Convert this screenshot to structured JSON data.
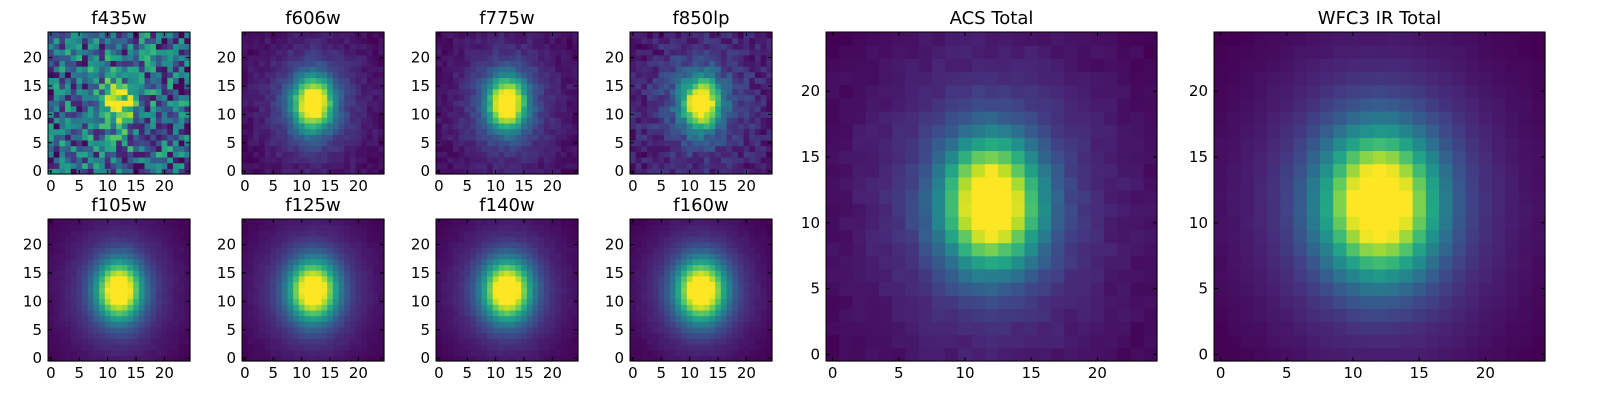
{
  "figure": {
    "description_free": true
  },
  "chart_data": [
    {
      "type": "heatmap",
      "title": "f435w",
      "xlim": [
        0,
        24
      ],
      "ylim": [
        0,
        24
      ],
      "x_ticks": [
        0,
        5,
        10,
        15,
        20
      ],
      "y_ticks": [
        0,
        5,
        10,
        15,
        20
      ],
      "grid_size": 25,
      "source": {
        "cx": 12,
        "cy": 12,
        "sigma_x": 1.6,
        "sigma_y": 2.2
      },
      "noise": 0.55,
      "background": 0.35,
      "colormap": "viridis"
    },
    {
      "type": "heatmap",
      "title": "f606w",
      "xlim": [
        0,
        24
      ],
      "ylim": [
        0,
        24
      ],
      "x_ticks": [
        0,
        5,
        10,
        15,
        20
      ],
      "y_ticks": [
        0,
        5,
        10,
        15,
        20
      ],
      "grid_size": 25,
      "source": {
        "cx": 12,
        "cy": 12,
        "sigma_x": 2.4,
        "sigma_y": 3.2
      },
      "noise": 0.04,
      "background": 0.05,
      "colormap": "viridis"
    },
    {
      "type": "heatmap",
      "title": "f775w",
      "xlim": [
        0,
        24
      ],
      "ylim": [
        0,
        24
      ],
      "x_ticks": [
        0,
        5,
        10,
        15,
        20
      ],
      "y_ticks": [
        0,
        5,
        10,
        15,
        20
      ],
      "grid_size": 25,
      "source": {
        "cx": 12,
        "cy": 12,
        "sigma_x": 2.3,
        "sigma_y": 3.1
      },
      "noise": 0.04,
      "background": 0.05,
      "colormap": "viridis"
    },
    {
      "type": "heatmap",
      "title": "f850lp",
      "xlim": [
        0,
        24
      ],
      "ylim": [
        0,
        24
      ],
      "x_ticks": [
        0,
        5,
        10,
        15,
        20
      ],
      "y_ticks": [
        0,
        5,
        10,
        15,
        20
      ],
      "grid_size": 25,
      "source": {
        "cx": 12,
        "cy": 12,
        "sigma_x": 2.3,
        "sigma_y": 3.0
      },
      "noise": 0.09,
      "background": 0.08,
      "colormap": "viridis"
    },
    {
      "type": "heatmap",
      "title": "f105w",
      "xlim": [
        0,
        24
      ],
      "ylim": [
        0,
        24
      ],
      "x_ticks": [
        0,
        5,
        10,
        15,
        20
      ],
      "y_ticks": [
        0,
        5,
        10,
        15,
        20
      ],
      "grid_size": 25,
      "source": {
        "cx": 12,
        "cy": 12,
        "sigma_x": 2.7,
        "sigma_y": 3.5
      },
      "noise": 0.01,
      "background": 0.04,
      "colormap": "viridis"
    },
    {
      "type": "heatmap",
      "title": "f125w",
      "xlim": [
        0,
        24
      ],
      "ylim": [
        0,
        24
      ],
      "x_ticks": [
        0,
        5,
        10,
        15,
        20
      ],
      "y_ticks": [
        0,
        5,
        10,
        15,
        20
      ],
      "grid_size": 25,
      "source": {
        "cx": 12,
        "cy": 12,
        "sigma_x": 2.9,
        "sigma_y": 3.6
      },
      "noise": 0.01,
      "background": 0.04,
      "colormap": "viridis"
    },
    {
      "type": "heatmap",
      "title": "f140w",
      "xlim": [
        0,
        24
      ],
      "ylim": [
        0,
        24
      ],
      "x_ticks": [
        0,
        5,
        10,
        15,
        20
      ],
      "y_ticks": [
        0,
        5,
        10,
        15,
        20
      ],
      "grid_size": 25,
      "source": {
        "cx": 12,
        "cy": 12,
        "sigma_x": 2.9,
        "sigma_y": 3.6
      },
      "noise": 0.01,
      "background": 0.04,
      "colormap": "viridis"
    },
    {
      "type": "heatmap",
      "title": "f160w",
      "xlim": [
        0,
        24
      ],
      "ylim": [
        0,
        24
      ],
      "x_ticks": [
        0,
        5,
        10,
        15,
        20
      ],
      "y_ticks": [
        0,
        5,
        10,
        15,
        20
      ],
      "grid_size": 25,
      "source": {
        "cx": 12,
        "cy": 12,
        "sigma_x": 3.0,
        "sigma_y": 3.7
      },
      "noise": 0.01,
      "background": 0.04,
      "colormap": "viridis"
    },
    {
      "type": "heatmap",
      "title": "ACS Total",
      "xlim": [
        0,
        24
      ],
      "ylim": [
        0,
        24
      ],
      "x_ticks": [
        0,
        5,
        10,
        15,
        20
      ],
      "y_ticks": [
        0,
        5,
        10,
        15,
        20
      ],
      "grid_size": 25,
      "source": {
        "cx": 12,
        "cy": 11.5,
        "sigma_x": 2.5,
        "sigma_y": 3.3
      },
      "noise": 0.02,
      "background": 0.06,
      "colormap": "viridis"
    },
    {
      "type": "heatmap",
      "title": "WFC3 IR Total",
      "xlim": [
        0,
        24
      ],
      "ylim": [
        0,
        24
      ],
      "x_ticks": [
        0,
        5,
        10,
        15,
        20
      ],
      "y_ticks": [
        0,
        5,
        10,
        15,
        20
      ],
      "grid_size": 25,
      "source": {
        "cx": 12,
        "cy": 11.5,
        "sigma_x": 3.0,
        "sigma_y": 3.8
      },
      "noise": 0.005,
      "background": 0.04,
      "colormap": "viridis"
    }
  ]
}
